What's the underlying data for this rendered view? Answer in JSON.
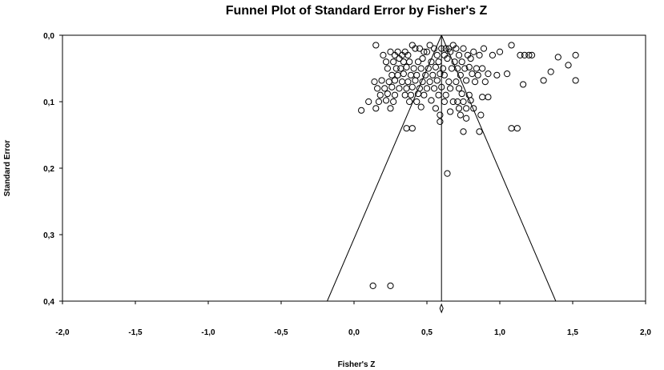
{
  "chart_data": {
    "type": "scatter",
    "title": "Funnel Plot of Standard Error by Fisher's Z",
    "xlabel": "Fisher's Z",
    "ylabel": "Standard Error",
    "xlim": [
      -2.0,
      2.0
    ],
    "ylim": [
      0.0,
      0.4
    ],
    "y_inverted": true,
    "x_ticks": [
      -2.0,
      -1.5,
      -1.0,
      -0.5,
      0.0,
      0.5,
      1.0,
      1.5,
      2.0
    ],
    "x_tick_labels": [
      "-2,0",
      "-1,5",
      "-1,0",
      "-0,5",
      "0,0",
      "0,5",
      "1,0",
      "1,5",
      "2,0"
    ],
    "y_ticks": [
      0.0,
      0.1,
      0.2,
      0.3,
      0.4
    ],
    "y_tick_labels": [
      "0,0",
      "0,1",
      "0,2",
      "0,3",
      "0,4"
    ],
    "grid": false,
    "pooled_estimate": 0.6,
    "funnel_se_max": 0.4,
    "funnel_multiplier": 1.96,
    "series": [
      {
        "marker": "open-circle",
        "x": [
          0.15,
          0.4,
          0.42,
          0.45,
          0.55,
          0.52,
          0.6,
          0.63,
          0.65,
          0.68,
          0.7,
          0.75,
          0.89,
          1.0,
          1.08,
          0.2,
          0.25,
          0.28,
          0.3,
          0.33,
          0.35,
          0.37,
          0.48,
          0.5,
          0.57,
          0.62,
          0.66,
          0.72,
          0.78,
          0.82,
          0.86,
          0.95,
          1.14,
          1.17,
          1.2,
          1.22,
          1.4,
          1.52,
          0.22,
          0.27,
          0.31,
          0.34,
          0.38,
          0.44,
          0.47,
          0.53,
          0.58,
          0.64,
          0.69,
          0.74,
          0.8,
          1.47,
          0.23,
          0.29,
          0.32,
          0.36,
          0.41,
          0.46,
          0.51,
          0.56,
          0.61,
          0.67,
          0.71,
          0.76,
          0.79,
          0.84,
          0.88,
          1.35,
          0.26,
          0.3,
          0.34,
          0.39,
          0.43,
          0.49,
          0.54,
          0.59,
          0.62,
          0.73,
          0.81,
          0.85,
          0.92,
          0.98,
          1.05,
          0.14,
          0.19,
          0.24,
          0.28,
          0.33,
          0.37,
          0.42,
          0.47,
          0.52,
          0.57,
          0.65,
          0.7,
          0.77,
          0.83,
          0.9,
          1.3,
          1.52,
          0.16,
          0.21,
          0.26,
          0.31,
          0.36,
          0.4,
          0.45,
          0.5,
          0.55,
          0.6,
          0.66,
          0.72,
          1.16,
          0.18,
          0.23,
          0.28,
          0.35,
          0.39,
          0.44,
          0.48,
          0.58,
          0.63,
          0.74,
          0.79,
          0.88,
          0.92,
          0.1,
          0.17,
          0.22,
          0.27,
          0.38,
          0.43,
          0.53,
          0.62,
          0.68,
          0.71,
          0.75,
          0.8,
          0.05,
          0.15,
          0.25,
          0.46,
          0.56,
          0.72,
          0.77,
          0.82,
          0.59,
          0.66,
          0.73,
          0.77,
          0.87,
          1.08,
          1.12,
          0.36,
          0.4,
          0.59,
          0.75,
          0.86,
          0.64,
          0.13,
          0.25
        ],
        "y": [
          0.015,
          0.015,
          0.02,
          0.02,
          0.02,
          0.015,
          0.02,
          0.02,
          0.02,
          0.015,
          0.02,
          0.02,
          0.02,
          0.025,
          0.015,
          0.03,
          0.025,
          0.03,
          0.025,
          0.03,
          0.025,
          0.03,
          0.025,
          0.025,
          0.03,
          0.03,
          0.025,
          0.03,
          0.03,
          0.025,
          0.03,
          0.03,
          0.03,
          0.03,
          0.03,
          0.03,
          0.033,
          0.03,
          0.04,
          0.04,
          0.035,
          0.04,
          0.04,
          0.04,
          0.035,
          0.04,
          0.04,
          0.035,
          0.04,
          0.04,
          0.035,
          0.045,
          0.05,
          0.05,
          0.05,
          0.048,
          0.05,
          0.05,
          0.05,
          0.048,
          0.05,
          0.05,
          0.05,
          0.05,
          0.048,
          0.05,
          0.05,
          0.055,
          0.06,
          0.06,
          0.058,
          0.06,
          0.06,
          0.06,
          0.06,
          0.058,
          0.06,
          0.06,
          0.058,
          0.06,
          0.058,
          0.06,
          0.058,
          0.07,
          0.068,
          0.07,
          0.068,
          0.07,
          0.07,
          0.068,
          0.07,
          0.07,
          0.068,
          0.07,
          0.07,
          0.068,
          0.07,
          0.07,
          0.068,
          0.068,
          0.08,
          0.08,
          0.078,
          0.08,
          0.08,
          0.078,
          0.08,
          0.08,
          0.08,
          0.078,
          0.08,
          0.08,
          0.074,
          0.09,
          0.088,
          0.09,
          0.09,
          0.09,
          0.088,
          0.09,
          0.09,
          0.09,
          0.088,
          0.09,
          0.093,
          0.093,
          0.1,
          0.1,
          0.098,
          0.1,
          0.1,
          0.1,
          0.098,
          0.1,
          0.1,
          0.1,
          0.1,
          0.098,
          0.113,
          0.11,
          0.11,
          0.108,
          0.11,
          0.11,
          0.11,
          0.11,
          0.12,
          0.115,
          0.12,
          0.125,
          0.12,
          0.14,
          0.14,
          0.14,
          0.14,
          0.13,
          0.145,
          0.145,
          0.208,
          0.377,
          0.377
        ]
      }
    ]
  }
}
